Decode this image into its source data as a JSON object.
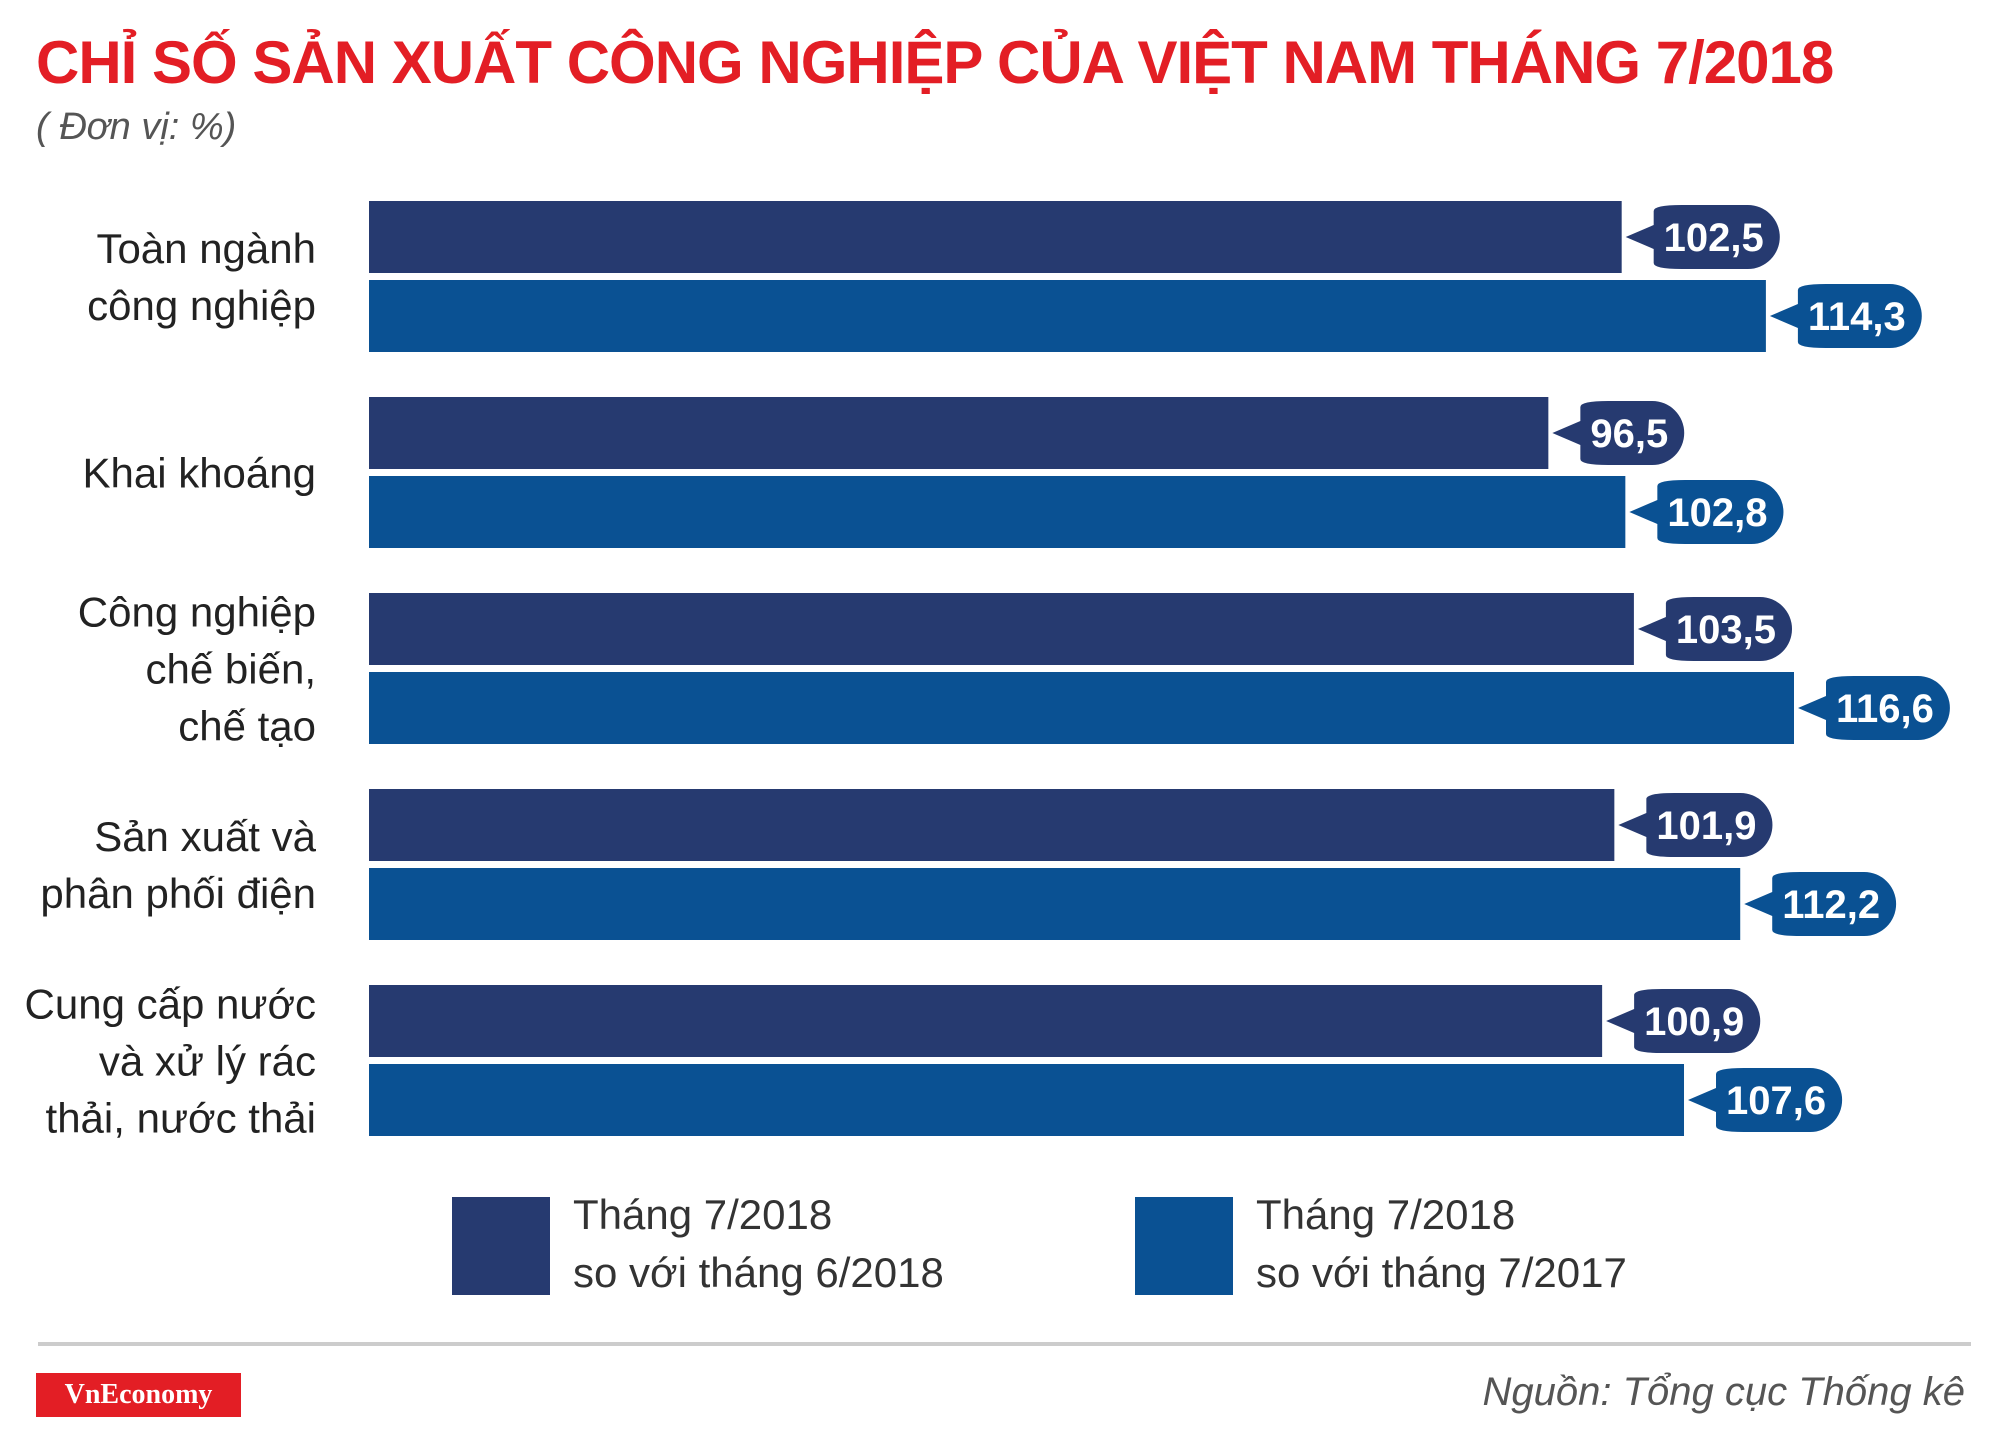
{
  "chart_data": {
    "type": "bar",
    "orientation": "horizontal",
    "title": "CHỈ SỐ SẢN XUẤT CÔNG NGHIỆP CỦA VIỆT NAM THÁNG 7/2018",
    "subtitle": "( Đơn vị: %)",
    "categories": [
      "Toàn ngành\ncông nghiệp",
      "Khai khoáng",
      "Công nghiệp\nchế biến,\nchế tạo",
      "Sản xuất và\nphân phối điện",
      "Cung cấp nước\nvà xử lý rác\nthải, nước thải"
    ],
    "series": [
      {
        "name": "Tháng 7/2018\nso với tháng 6/2018",
        "color": "#263a70",
        "values": [
          102.5,
          96.5,
          103.5,
          101.9,
          100.9
        ],
        "value_labels": [
          "102,5",
          "96,5",
          "103,5",
          "101,9",
          "100,9"
        ]
      },
      {
        "name": "Tháng 7/2018\nso với tháng 7/2017",
        "color": "#0a5193",
        "values": [
          114.3,
          102.8,
          116.6,
          112.2,
          107.6
        ],
        "value_labels": [
          "114,3",
          "102,8",
          "116,6",
          "112,2",
          "107,6"
        ]
      }
    ],
    "source": "Nguồn: Tổng cục Thống kê",
    "logo": "VnEconomy"
  }
}
